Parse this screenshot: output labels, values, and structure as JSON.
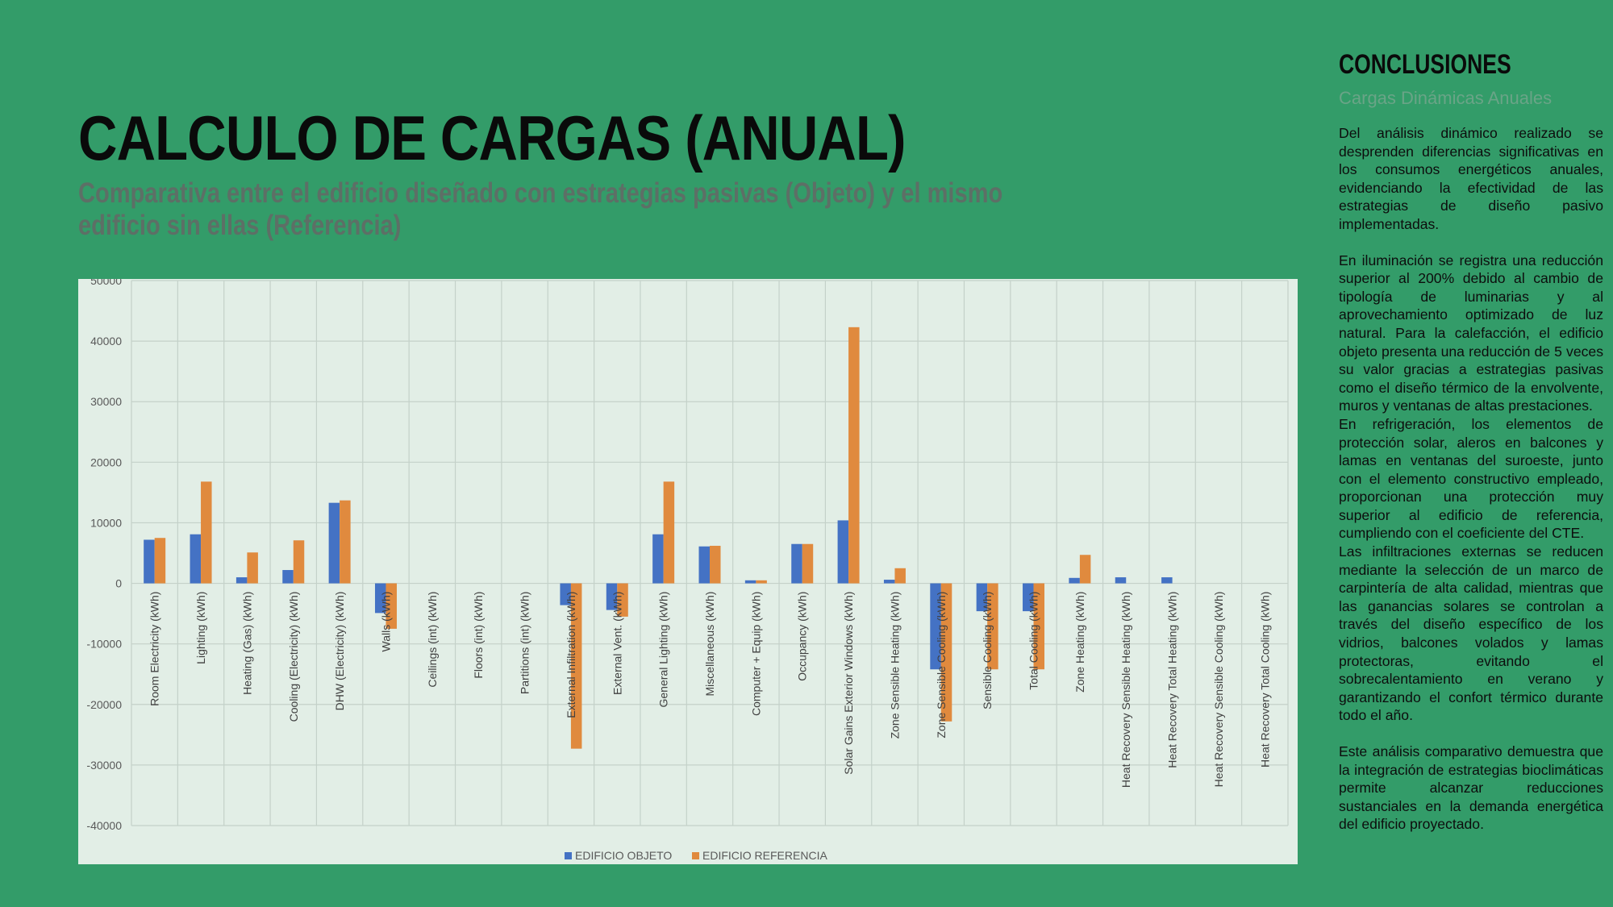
{
  "header": {
    "title": "CALCULO DE CARGAS (ANUAL)",
    "subtitle": "Comparativa entre el edificio diseñado con estrategias pasivas (Objeto) y el mismo edificio sin ellas (Referencia)"
  },
  "sidebar": {
    "title": "CONCLUSIONES",
    "subtitle": "Cargas Dinámicas Anuales",
    "paragraphs": [
      "Del análisis dinámico realizado se desprenden diferencias significativas en los consumos energéticos anuales, evidenciando la efectividad de las estrategias de diseño pasivo implementadas.",
      "En iluminación se registra una reducción superior al 200% debido al cambio de tipología de luminarias y al aprovechamiento optimizado de luz natural. Para la calefacción, el edificio objeto presenta una reducción de 5 veces su valor gracias a estrategias pasivas como el diseño térmico de la envolvente, muros y ventanas de altas prestaciones.",
      "En refrigeración, los elementos de protección solar, aleros en balcones y lamas en ventanas del suroeste, junto con el elemento constructivo empleado, proporcionan una protección muy superior al edificio de referencia, cumpliendo con el coeficiente del CTE.",
      "Las infiltraciones externas se reducen mediante la selección de un marco de carpintería de alta calidad, mientras que las ganancias solares se controlan a través del diseño específico de los vidrios, balcones volados y lamas protectoras, evitando el sobrecalentamiento en verano y garantizando el confort térmico durante todo el año.",
      "Este análisis comparativo demuestra que la integración de estrategias bioclimáticas permite alcanzar reducciones sustanciales en la demanda energética del edificio proyectado."
    ]
  },
  "colors": {
    "background": "#339c69",
    "panel": "#e2eee6",
    "objeto": "#4472c4",
    "referencia": "#e08a3e"
  },
  "chart_data": {
    "type": "bar",
    "title": "",
    "xlabel": "",
    "ylabel": "",
    "ylim": [
      -40000,
      50000
    ],
    "yticks": [
      50000,
      40000,
      30000,
      20000,
      10000,
      0,
      -10000,
      -20000,
      -30000,
      -40000
    ],
    "grid": true,
    "legend_position": "bottom",
    "categories": [
      "Room Electricity (kWh)",
      "Lighting (kWh)",
      "Heating (Gas) (kWh)",
      "Cooling (Electricity) (kWh)",
      "DHW (Electricity) (kWh)",
      "Walls (kWh)",
      "Ceilings (int) (kWh)",
      "Floors (int) (kWh)",
      "Partitions (int) (kWh)",
      "External Infiltration (kWh)",
      "External Vent. (kWh)",
      "General Lighting (kWh)",
      "Miscellaneous (kWh)",
      "Computer + Equip (kWh)",
      "Occupancy (kWh)",
      "Solar Gains Exterior Windows (kWh)",
      "Zone Sensible Heating (kWh)",
      "Zone Sensible Cooling (kWh)",
      "Sensible Cooling (kWh)",
      "Total Cooling (kWh)",
      "Zone Heating (kWh)",
      "Heat Recovery Sensible Heating (kWh)",
      "Heat Recovery Total Heating (kWh)",
      "Heat Recovery Sensible Cooling (kWh)",
      "Heat Recovery Total Cooling (kWh)"
    ],
    "series": [
      {
        "name": "EDIFICIO OBJETO",
        "color": "#4472c4",
        "values": [
          7200,
          8100,
          1000,
          2200,
          13300,
          -4900,
          0,
          0,
          0,
          -3600,
          -4400,
          8100,
          6100,
          500,
          6500,
          10400,
          600,
          -14200,
          -4600,
          -4600,
          900,
          1000,
          1000,
          0,
          0
        ]
      },
      {
        "name": "EDIFICIO REFERENCIA",
        "color": "#e08a3e",
        "values": [
          7500,
          16800,
          5100,
          7100,
          13700,
          -7500,
          0,
          0,
          0,
          -27300,
          -5500,
          16800,
          6200,
          500,
          6500,
          42300,
          2500,
          -22800,
          -14200,
          -14200,
          4700,
          0,
          0,
          0,
          0
        ]
      }
    ]
  }
}
